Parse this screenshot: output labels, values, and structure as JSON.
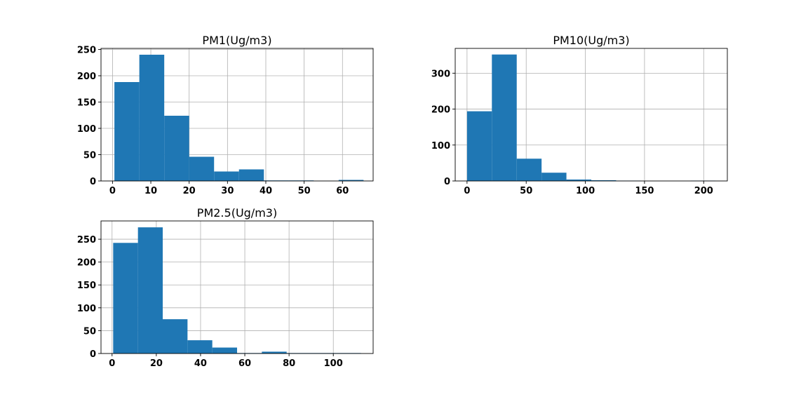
{
  "chart_data": [
    {
      "type": "bar",
      "title": "PM1(Ug/m3)",
      "bin_edges": [
        0.5,
        7.0,
        13.5,
        20.0,
        26.5,
        33.0,
        39.5,
        46.0,
        52.5,
        59.0,
        65.5
      ],
      "values": [
        188,
        240,
        124,
        46,
        18,
        22,
        1,
        1,
        0,
        2
      ],
      "xlim": [
        -3,
        68
      ],
      "ylim": [
        0,
        252
      ],
      "xticks": [
        0,
        10,
        20,
        30,
        40,
        50,
        60
      ],
      "yticks": [
        0,
        50,
        100,
        150,
        200,
        250
      ],
      "grid": true,
      "color": "#1f77b4"
    },
    {
      "type": "bar",
      "title": "PM10(Ug/m3)",
      "bin_edges": [
        0,
        21,
        42,
        63,
        84,
        105,
        126,
        147,
        168,
        189,
        210
      ],
      "values": [
        194,
        352,
        62,
        23,
        4,
        2,
        1,
        0,
        0,
        1
      ],
      "xlim": [
        -10,
        220
      ],
      "ylim": [
        0,
        369
      ],
      "xticks": [
        0,
        50,
        100,
        150,
        200
      ],
      "yticks": [
        0,
        100,
        200,
        300
      ],
      "grid": true,
      "color": "#1f77b4"
    },
    {
      "type": "bar",
      "title": "PM2.5(Ug/m3)",
      "bin_edges": [
        0.5,
        11.7,
        22.9,
        34.1,
        45.3,
        56.5,
        67.7,
        78.9,
        90.1,
        101.3,
        112.5
      ],
      "values": [
        242,
        276,
        75,
        29,
        13,
        1,
        4,
        1,
        1,
        1
      ],
      "xlim": [
        -5,
        118
      ],
      "ylim": [
        0,
        290
      ],
      "xticks": [
        0,
        20,
        40,
        60,
        80,
        100
      ],
      "yticks": [
        0,
        50,
        100,
        150,
        200,
        250
      ],
      "grid": true,
      "color": "#1f77b4"
    }
  ]
}
